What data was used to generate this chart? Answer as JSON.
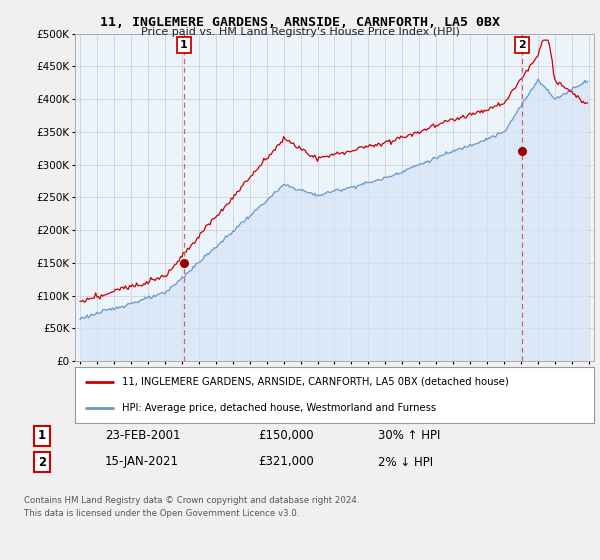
{
  "title": "11, INGLEMERE GARDENS, ARNSIDE, CARNFORTH, LA5 0BX",
  "subtitle": "Price paid vs. HM Land Registry's House Price Index (HPI)",
  "legend_line1": "11, INGLEMERE GARDENS, ARNSIDE, CARNFORTH, LA5 0BX (detached house)",
  "legend_line2": "HPI: Average price, detached house, Westmorland and Furness",
  "annotation1_box": "1",
  "annotation1_date": "23-FEB-2001",
  "annotation1_price": "£150,000",
  "annotation1_hpi": "30% ↑ HPI",
  "annotation2_box": "2",
  "annotation2_date": "15-JAN-2021",
  "annotation2_price": "£321,000",
  "annotation2_hpi": "2% ↓ HPI",
  "footer": "Contains HM Land Registry data © Crown copyright and database right 2024.\nThis data is licensed under the Open Government Licence v3.0.",
  "sale1_x": 2001.12,
  "sale1_y": 150000,
  "sale2_x": 2021.04,
  "sale2_y": 321000,
  "hpi_color": "#6699CC",
  "price_color": "#CC0000",
  "sale_marker_color": "#990000",
  "vline_color": "#CC6666",
  "fill_color": "#D6E4F7",
  "ylim": [
    0,
    500000
  ],
  "xlim": [
    1994.7,
    2025.3
  ],
  "background_color": "#f0f0f0",
  "plot_bg_color": "#EBF3FB",
  "grid_color": "#cccccc",
  "yticks": [
    0,
    50000,
    100000,
    150000,
    200000,
    250000,
    300000,
    350000,
    400000,
    450000,
    500000
  ]
}
